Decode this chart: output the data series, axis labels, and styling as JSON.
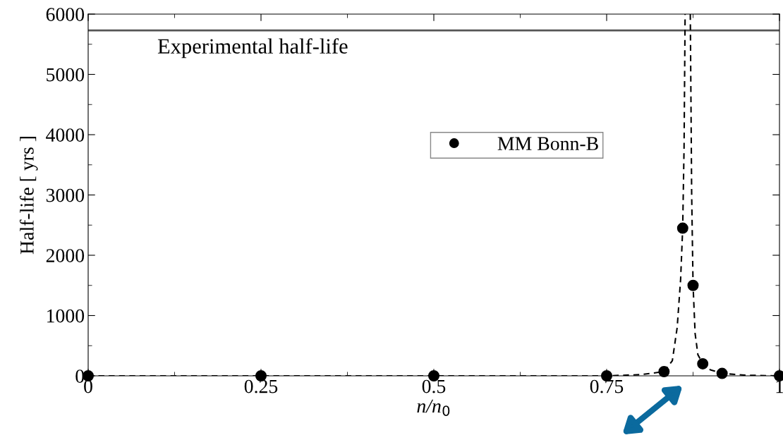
{
  "chart_data": {
    "type": "scatter",
    "xlabel": "n/n$_{0}$",
    "ylabel": "Half-life [ yrs ]",
    "series": [
      {
        "name": "MM Bonn-B",
        "color": "#000000",
        "marker": "circle",
        "x": [
          0,
          0.25,
          0.5,
          0.75,
          0.833,
          0.86,
          0.875,
          0.889,
          0.917,
          1.0
        ],
        "values": [
          0,
          0,
          0,
          0,
          70,
          2450,
          1500,
          200,
          40,
          0
        ]
      },
      {
        "type": "line",
        "color": "#000000",
        "line_style": "dashed",
        "x": [
          0,
          0.25,
          0.5,
          0.75,
          0.8,
          0.833,
          0.845,
          0.852,
          0.857,
          0.86,
          0.862,
          0.8635
        ],
        "values": [
          0,
          0,
          0,
          0,
          20,
          70,
          250,
          800,
          1600,
          2450,
          3800,
          6000
        ]
      },
      {
        "type": "line",
        "color": "#000000",
        "line_style": "dashed",
        "x": [
          0.871,
          0.873,
          0.875,
          0.878,
          0.882,
          0.889,
          0.9,
          0.917,
          0.95,
          1.0
        ],
        "values": [
          6000,
          3000,
          1500,
          700,
          350,
          200,
          100,
          40,
          10,
          0
        ]
      }
    ],
    "ref_lines": [
      {
        "axis": "y",
        "value": 5730,
        "label": "Experimental half-life",
        "color": "#555555"
      }
    ],
    "xlim": [
      0,
      1
    ],
    "xticks": [
      0,
      0.25,
      0.5,
      0.75,
      1
    ],
    "ylim": [
      0,
      6000
    ],
    "yticks": [
      0,
      1000,
      2000,
      3000,
      4000,
      5000,
      6000
    ],
    "grid": false,
    "legend": "top"
  }
}
